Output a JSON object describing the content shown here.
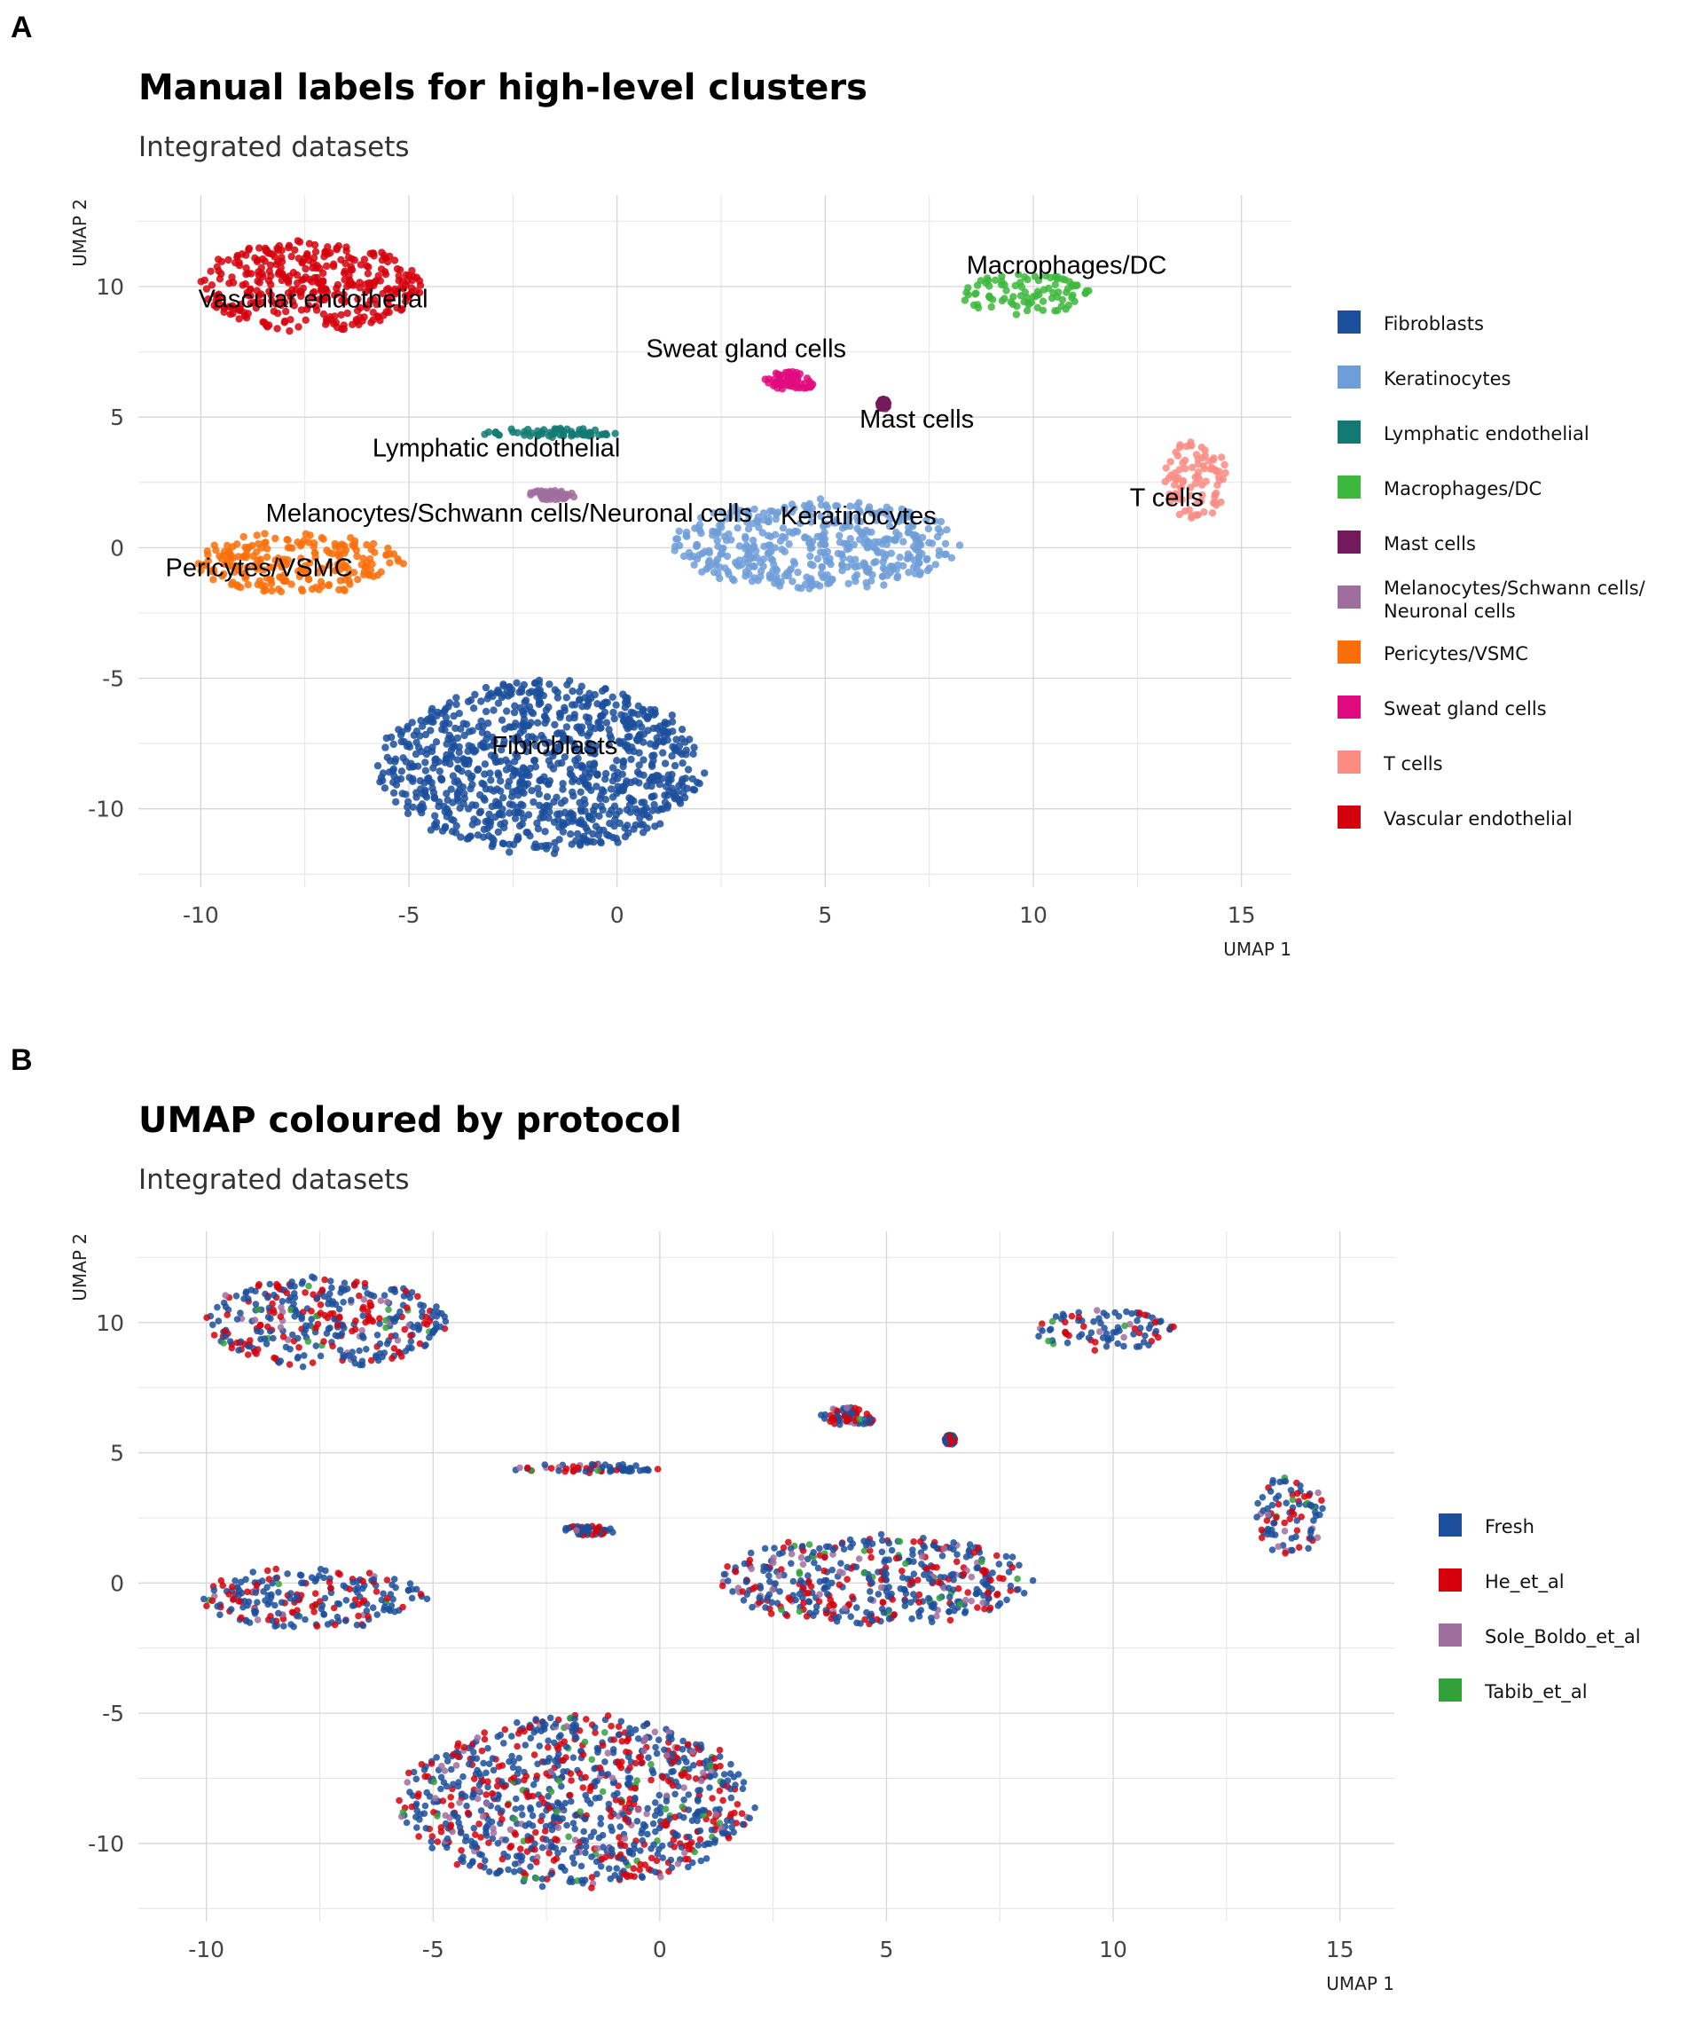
{
  "colors": {
    "Fibroblasts": "#1b4f9c",
    "Keratinocytes": "#6e9ed8",
    "Lymphatic endothelial": "#127a72",
    "Macrophages/DC": "#3cb83c",
    "Mast cells": "#741a5c",
    "Melanocytes/Schwann cells/Neuronal cells": "#a06e9e",
    "Pericytes/VSMC": "#fa6e0a",
    "Sweat gland cells": "#e00a7e",
    "T cells": "#fa8c82",
    "Vascular endothelial": "#d6000c",
    "Fresh": "#1b4f9c",
    "He_et_al": "#d6000c",
    "Sole_Boldo_et_al": "#a06e9e",
    "Tabib_et_al": "#34a03a"
  },
  "chart_data": [
    {
      "panel_letter": "A",
      "type": "scatter",
      "title": "Manual labels for high-level clusters",
      "subtitle": "Integrated datasets",
      "xlabel": "UMAP 1",
      "ylabel": "UMAP 2",
      "xlim": [
        -11.5,
        16.2
      ],
      "ylim": [
        -13.0,
        13.5
      ],
      "xticks": [
        -10,
        -5,
        0,
        5,
        10,
        15
      ],
      "yticks": [
        -10,
        -5,
        0,
        5,
        10
      ],
      "tick_labels_x": [
        "-10",
        "-5",
        "0",
        "5",
        "10",
        "15"
      ],
      "tick_labels_y": [
        "-10",
        "-5",
        "0",
        "5",
        "10"
      ],
      "grid": true,
      "legend_position": "right",
      "legend": [
        "Fibroblasts",
        "Keratinocytes",
        "Lymphatic endothelial",
        "Macrophages/DC",
        "Mast cells",
        "Melanocytes/Schwann cells/Neuronal cells",
        "Pericytes/VSMC",
        "Sweat gland cells",
        "T cells",
        "Vascular endothelial"
      ],
      "legend_display": [
        "Fibroblasts",
        "Keratinocytes",
        "Lymphatic endothelial",
        "Macrophages/DC",
        "Mast cells",
        "Melanocytes/Schwann cells/|Neuronal cells",
        "Pericytes/VSMC",
        "Sweat gland cells",
        "T cells",
        "Vascular endothelial"
      ],
      "clusters": [
        {
          "name": "Fibroblasts",
          "cx": -1.8,
          "cy": -8.4,
          "rx": 4.0,
          "ry": 3.4
        },
        {
          "name": "Keratinocytes",
          "cx": 4.8,
          "cy": 0.1,
          "rx": 3.6,
          "ry": 1.8
        },
        {
          "name": "Lymphatic endothelial",
          "cx": -1.7,
          "cy": 4.4,
          "rx": 1.7,
          "ry": 0.18
        },
        {
          "name": "Macrophages/DC",
          "cx": 9.8,
          "cy": 9.7,
          "rx": 1.6,
          "ry": 0.8
        },
        {
          "name": "Mast cells",
          "cx": 6.4,
          "cy": 5.5,
          "rx": 0.12,
          "ry": 0.2
        },
        {
          "name": "Melanocytes/Schwann cells/Neuronal cells",
          "cx": -1.6,
          "cy": 2.0,
          "rx": 0.6,
          "ry": 0.2
        },
        {
          "name": "Pericytes/VSMC",
          "cx": -7.7,
          "cy": -0.6,
          "rx": 2.6,
          "ry": 1.2
        },
        {
          "name": "Sweat gland cells",
          "cx": 4.2,
          "cy": 6.4,
          "rx": 0.7,
          "ry": 0.35
        },
        {
          "name": "T cells",
          "cx": 13.9,
          "cy": 2.6,
          "rx": 0.8,
          "ry": 1.6
        },
        {
          "name": "Vascular endothelial",
          "cx": -7.4,
          "cy": 10.0,
          "rx": 2.8,
          "ry": 1.8
        }
      ],
      "cluster_labels": [
        {
          "text": "Vascular endothelial",
          "x": -7.3,
          "y": 9.2
        },
        {
          "text": "Macrophages/DC",
          "x": 10.8,
          "y": 10.5
        },
        {
          "text": "Sweat gland cells",
          "x": 3.1,
          "y": 7.3
        },
        {
          "text": "Mast cells",
          "x": 7.2,
          "y": 4.6
        },
        {
          "text": "Lymphatic endothelial",
          "x": -2.9,
          "y": 3.5
        },
        {
          "text": "T cells",
          "x": 13.2,
          "y": 1.6
        },
        {
          "text": "Melanocytes/Schwann cells/Neuronal cells",
          "x": -2.6,
          "y": 1.0
        },
        {
          "text": "Keratinocytes",
          "x": 5.8,
          "y": 0.9
        },
        {
          "text": "Pericytes/VSMC",
          "x": -8.6,
          "y": -1.1
        },
        {
          "text": "Fibroblasts",
          "x": -1.5,
          "y": -7.9
        }
      ]
    },
    {
      "panel_letter": "B",
      "type": "scatter",
      "title": "UMAP coloured by protocol",
      "subtitle": "Integrated datasets",
      "xlabel": "UMAP 1",
      "ylabel": "UMAP 2",
      "xlim": [
        -11.5,
        16.2
      ],
      "ylim": [
        -13.0,
        13.5
      ],
      "xticks": [
        -10,
        -5,
        0,
        5,
        10,
        15
      ],
      "yticks": [
        -10,
        -5,
        0,
        5,
        10
      ],
      "tick_labels_x": [
        "-10",
        "-5",
        "0",
        "5",
        "10",
        "15"
      ],
      "tick_labels_y": [
        "-10",
        "-5",
        "0",
        "5",
        "10"
      ],
      "grid": true,
      "legend_position": "right",
      "legend": [
        "Fresh",
        "He_et_al",
        "Sole_Boldo_et_al",
        "Tabib_et_al"
      ],
      "legend_display": [
        "Fresh",
        "He_et_al",
        "Sole_Boldo_et_al",
        "Tabib_et_al"
      ],
      "protocol_mix": [
        0.58,
        0.3,
        0.08,
        0.04
      ]
    }
  ]
}
